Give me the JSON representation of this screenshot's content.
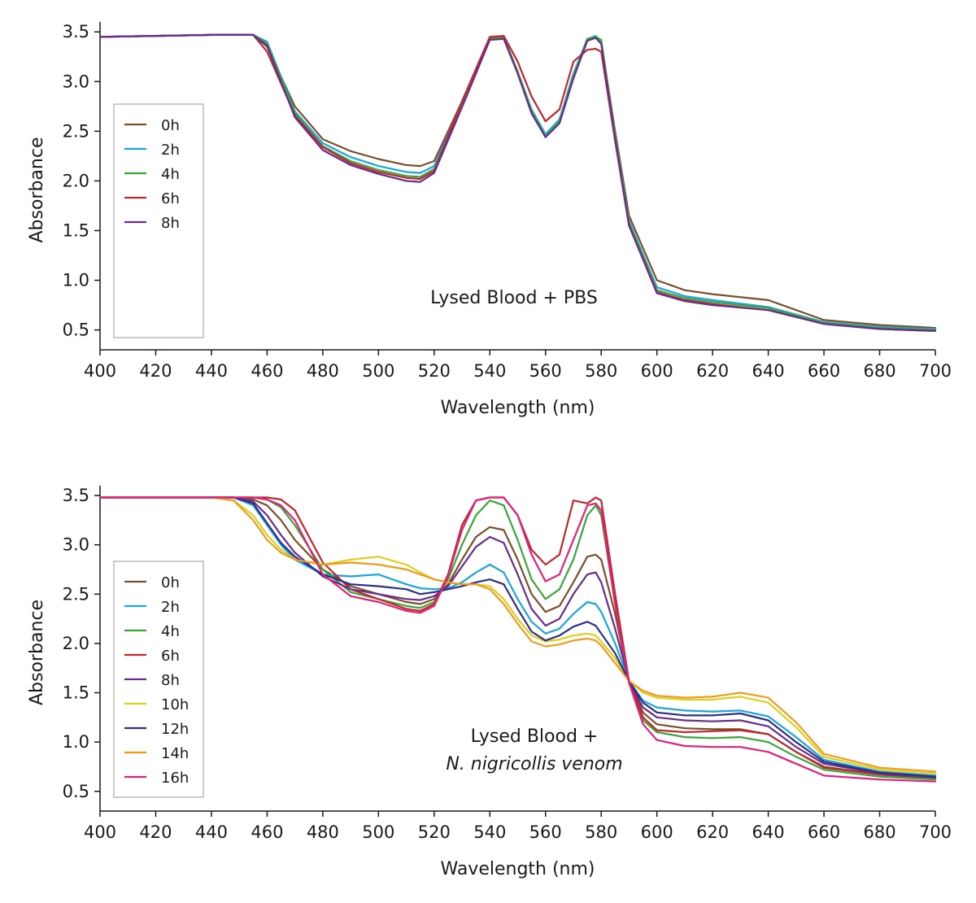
{
  "chart_data": [
    {
      "type": "line",
      "xlabel": "Wavelength (nm)",
      "ylabel": "Absorbance",
      "xlim": [
        400,
        700
      ],
      "ylim": [
        0.3,
        3.6
      ],
      "xticks": [
        "400",
        "420",
        "440",
        "460",
        "480",
        "500",
        "520",
        "540",
        "560",
        "580",
        "600",
        "620",
        "640",
        "660",
        "680",
        "700"
      ],
      "yticks": [
        "0.5",
        "1.0",
        "1.5",
        "2.0",
        "2.5",
        "3.0",
        "3.5"
      ],
      "legend": "left",
      "annotation": {
        "line1": "Lysed Blood + PBS",
        "line2": ""
      },
      "x": [
        400,
        420,
        440,
        455,
        460,
        470,
        480,
        490,
        500,
        510,
        515,
        520,
        530,
        540,
        545,
        550,
        555,
        560,
        565,
        570,
        575,
        578,
        580,
        585,
        590,
        600,
        610,
        620,
        640,
        660,
        680,
        700
      ],
      "series": [
        {
          "name": "0h",
          "color": "#7a4f2a",
          "values": [
            3.45,
            3.46,
            3.47,
            3.47,
            3.35,
            2.75,
            2.42,
            2.3,
            2.22,
            2.16,
            2.15,
            2.2,
            2.8,
            3.45,
            3.45,
            3.1,
            2.7,
            2.45,
            2.6,
            3.05,
            3.42,
            3.45,
            3.4,
            2.5,
            1.65,
            1.0,
            0.9,
            0.86,
            0.8,
            0.6,
            0.55,
            0.52
          ]
        },
        {
          "name": "2h",
          "color": "#1aa6dc",
          "values": [
            3.45,
            3.46,
            3.47,
            3.47,
            3.4,
            2.7,
            2.38,
            2.24,
            2.15,
            2.09,
            2.08,
            2.15,
            2.78,
            3.43,
            3.44,
            3.1,
            2.72,
            2.47,
            2.62,
            3.08,
            3.43,
            3.46,
            3.4,
            2.45,
            1.6,
            0.93,
            0.84,
            0.8,
            0.73,
            0.58,
            0.53,
            0.51
          ]
        },
        {
          "name": "4h",
          "color": "#3aa63a",
          "values": [
            3.45,
            3.46,
            3.47,
            3.47,
            3.38,
            2.68,
            2.35,
            2.2,
            2.11,
            2.05,
            2.04,
            2.12,
            2.76,
            3.43,
            3.44,
            3.1,
            2.7,
            2.45,
            2.6,
            3.05,
            3.43,
            3.45,
            3.42,
            2.45,
            1.58,
            0.9,
            0.82,
            0.78,
            0.72,
            0.57,
            0.52,
            0.5
          ]
        },
        {
          "name": "6h",
          "color": "#c0282d",
          "values": [
            3.45,
            3.46,
            3.47,
            3.47,
            3.3,
            2.66,
            2.34,
            2.18,
            2.09,
            2.03,
            2.02,
            2.1,
            2.8,
            3.45,
            3.46,
            3.2,
            2.85,
            2.6,
            2.72,
            3.2,
            3.32,
            3.33,
            3.3,
            2.4,
            1.55,
            0.88,
            0.8,
            0.76,
            0.7,
            0.56,
            0.51,
            0.49
          ]
        },
        {
          "name": "8h",
          "color": "#6a2c8c",
          "values": [
            3.45,
            3.46,
            3.47,
            3.47,
            3.36,
            2.64,
            2.31,
            2.16,
            2.07,
            2.0,
            1.99,
            2.08,
            2.74,
            3.42,
            3.43,
            3.08,
            2.68,
            2.44,
            2.58,
            3.03,
            3.41,
            3.44,
            3.38,
            2.42,
            1.55,
            0.87,
            0.79,
            0.75,
            0.7,
            0.56,
            0.51,
            0.49
          ]
        }
      ]
    },
    {
      "type": "line",
      "xlabel": "Wavelength (nm)",
      "ylabel": "Absorbance",
      "xlim": [
        400,
        700
      ],
      "ylim": [
        0.3,
        3.6
      ],
      "xticks": [
        "400",
        "420",
        "440",
        "460",
        "480",
        "500",
        "520",
        "540",
        "560",
        "580",
        "600",
        "620",
        "640",
        "660",
        "680",
        "700"
      ],
      "yticks": [
        "0.5",
        "1.0",
        "1.5",
        "2.0",
        "2.5",
        "3.0",
        "3.5"
      ],
      "legend": "left",
      "annotation": {
        "line1": "Lysed Blood +",
        "line2": "N. nigricollis venom"
      },
      "x": [
        400,
        420,
        440,
        448,
        455,
        460,
        465,
        470,
        480,
        490,
        500,
        510,
        515,
        520,
        525,
        530,
        535,
        540,
        545,
        550,
        555,
        560,
        565,
        570,
        575,
        578,
        580,
        585,
        590,
        595,
        600,
        610,
        620,
        630,
        640,
        650,
        660,
        680,
        700
      ],
      "series": [
        {
          "name": "0h",
          "color": "#7a4f2a",
          "values": [
            3.48,
            3.48,
            3.48,
            3.48,
            3.46,
            3.4,
            3.25,
            3.05,
            2.75,
            2.58,
            2.5,
            2.42,
            2.4,
            2.45,
            2.6,
            2.85,
            3.08,
            3.18,
            3.15,
            2.85,
            2.5,
            2.32,
            2.38,
            2.62,
            2.88,
            2.9,
            2.85,
            2.3,
            1.62,
            1.3,
            1.18,
            1.14,
            1.13,
            1.13,
            1.08,
            0.9,
            0.75,
            0.67,
            0.63
          ]
        },
        {
          "name": "2h",
          "color": "#1aa6dc",
          "values": [
            3.48,
            3.48,
            3.48,
            3.48,
            3.4,
            3.2,
            3.0,
            2.85,
            2.7,
            2.68,
            2.7,
            2.6,
            2.56,
            2.55,
            2.56,
            2.62,
            2.72,
            2.8,
            2.72,
            2.45,
            2.22,
            2.1,
            2.15,
            2.3,
            2.42,
            2.4,
            2.32,
            2.0,
            1.62,
            1.42,
            1.35,
            1.32,
            1.31,
            1.32,
            1.26,
            1.05,
            0.82,
            0.7,
            0.66
          ]
        },
        {
          "name": "4h",
          "color": "#3aa63a",
          "values": [
            3.48,
            3.48,
            3.48,
            3.48,
            3.48,
            3.46,
            3.38,
            3.2,
            2.75,
            2.52,
            2.45,
            2.38,
            2.36,
            2.42,
            2.65,
            3.0,
            3.3,
            3.45,
            3.4,
            3.05,
            2.65,
            2.45,
            2.55,
            2.85,
            3.3,
            3.4,
            3.3,
            2.4,
            1.6,
            1.22,
            1.1,
            1.05,
            1.04,
            1.05,
            1.0,
            0.85,
            0.72,
            0.65,
            0.62
          ]
        },
        {
          "name": "6h",
          "color": "#c0282d",
          "values": [
            3.48,
            3.48,
            3.48,
            3.48,
            3.48,
            3.48,
            3.46,
            3.35,
            2.82,
            2.55,
            2.45,
            2.35,
            2.33,
            2.4,
            2.7,
            3.2,
            3.45,
            3.48,
            3.48,
            3.3,
            2.95,
            2.8,
            2.9,
            3.45,
            3.42,
            3.48,
            3.45,
            2.5,
            1.62,
            1.25,
            1.12,
            1.1,
            1.11,
            1.12,
            1.08,
            0.9,
            0.74,
            0.67,
            0.64
          ]
        },
        {
          "name": "8h",
          "color": "#6a2c8c",
          "values": [
            3.48,
            3.48,
            3.48,
            3.48,
            3.44,
            3.3,
            3.1,
            2.92,
            2.68,
            2.55,
            2.5,
            2.45,
            2.44,
            2.48,
            2.58,
            2.78,
            2.98,
            3.08,
            3.02,
            2.7,
            2.35,
            2.18,
            2.25,
            2.5,
            2.7,
            2.72,
            2.62,
            2.15,
            1.62,
            1.35,
            1.25,
            1.22,
            1.21,
            1.22,
            1.16,
            0.95,
            0.78,
            0.68,
            0.64
          ]
        },
        {
          "name": "10h",
          "color": "#dcd01e",
          "values": [
            3.48,
            3.48,
            3.48,
            3.45,
            3.3,
            3.1,
            2.95,
            2.85,
            2.8,
            2.85,
            2.88,
            2.8,
            2.72,
            2.65,
            2.62,
            2.6,
            2.6,
            2.58,
            2.45,
            2.25,
            2.08,
            2.02,
            2.04,
            2.08,
            2.1,
            2.08,
            2.02,
            1.85,
            1.62,
            1.5,
            1.45,
            1.43,
            1.43,
            1.46,
            1.4,
            1.15,
            0.85,
            0.72,
            0.68
          ]
        },
        {
          "name": "12h",
          "color": "#2e2f86",
          "values": [
            3.48,
            3.48,
            3.48,
            3.48,
            3.42,
            3.22,
            3.02,
            2.88,
            2.7,
            2.6,
            2.58,
            2.55,
            2.5,
            2.52,
            2.55,
            2.58,
            2.62,
            2.65,
            2.6,
            2.35,
            2.12,
            2.03,
            2.08,
            2.17,
            2.22,
            2.18,
            2.1,
            1.9,
            1.62,
            1.4,
            1.3,
            1.27,
            1.27,
            1.29,
            1.22,
            1.0,
            0.8,
            0.69,
            0.65
          ]
        },
        {
          "name": "14h",
          "color": "#f29a1c",
          "values": [
            3.48,
            3.48,
            3.48,
            3.45,
            3.25,
            3.05,
            2.92,
            2.85,
            2.8,
            2.82,
            2.8,
            2.75,
            2.7,
            2.65,
            2.62,
            2.6,
            2.6,
            2.55,
            2.4,
            2.2,
            2.02,
            1.97,
            1.99,
            2.03,
            2.05,
            2.03,
            1.98,
            1.8,
            1.62,
            1.52,
            1.47,
            1.45,
            1.46,
            1.5,
            1.45,
            1.2,
            0.88,
            0.74,
            0.7
          ]
        },
        {
          "name": "16h",
          "color": "#e0227a",
          "values": [
            3.48,
            3.48,
            3.48,
            3.48,
            3.48,
            3.46,
            3.4,
            3.25,
            2.7,
            2.48,
            2.42,
            2.33,
            2.31,
            2.38,
            2.68,
            3.15,
            3.45,
            3.48,
            3.48,
            3.3,
            2.9,
            2.63,
            2.7,
            3.05,
            3.4,
            3.42,
            3.35,
            2.4,
            1.6,
            1.18,
            1.02,
            0.96,
            0.95,
            0.95,
            0.9,
            0.78,
            0.66,
            0.62,
            0.6
          ]
        }
      ]
    }
  ]
}
